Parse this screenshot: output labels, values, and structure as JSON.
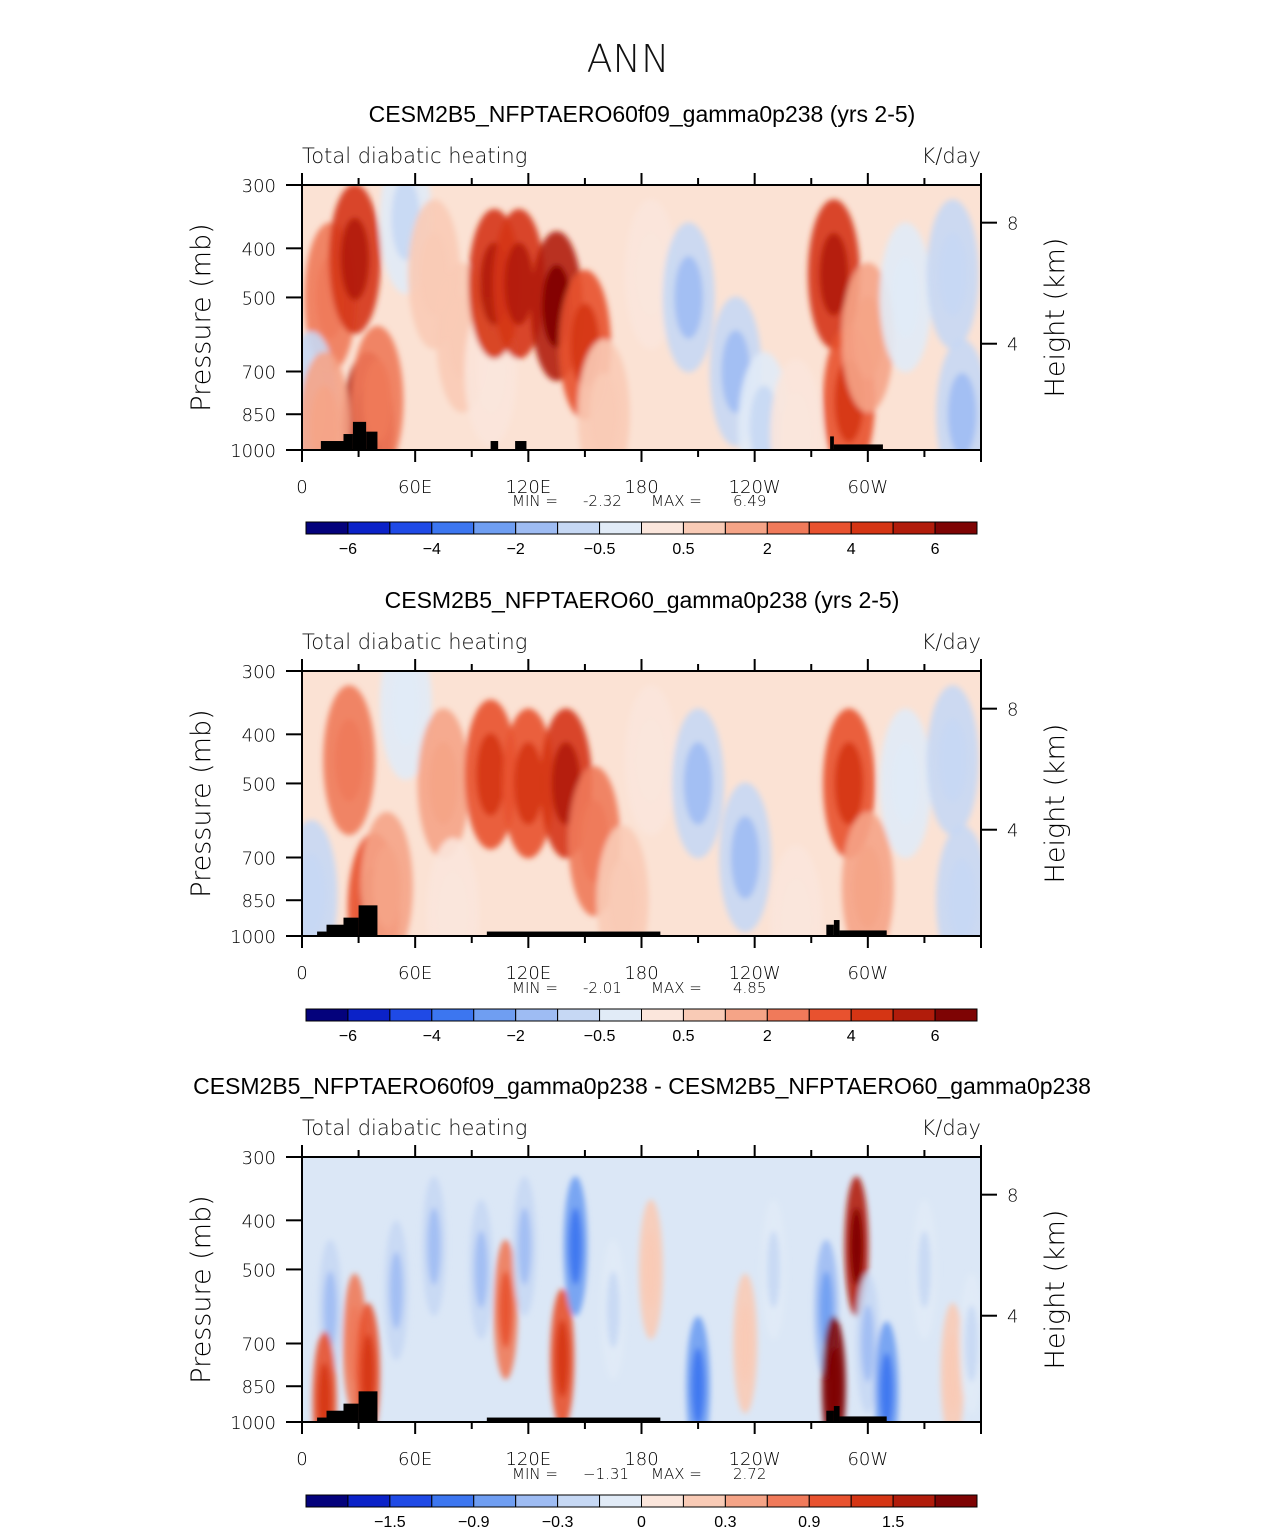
{
  "suptitle": "ANN",
  "chart_data": [
    {
      "type": "heatmap",
      "title": "CESM2B5_NFPTAERO60f09_gamma0p238 (yrs 2-5)",
      "subtitle_left": "Total diabatic heating",
      "subtitle_right": "K/day",
      "ylabel": "Pressure (mb)",
      "ylabel_right": "Height (km)",
      "yticks": [
        "300",
        "400",
        "500",
        "700",
        "850",
        "1000"
      ],
      "yticks_right": [
        "8",
        "4"
      ],
      "xticks": [
        "0",
        "60E",
        "120E",
        "180",
        "120W",
        "60W"
      ],
      "ylim": [
        1000,
        300
      ],
      "stats": {
        "min_label": "MIN =",
        "min": "-2.32",
        "max_label": "MAX =",
        "max": "6.49"
      },
      "colorbar_levels": [
        "-6",
        "-4",
        "-2",
        "-0.5",
        "0.5",
        "2",
        "4",
        "6"
      ],
      "cells": [
        {
          "lon": 15,
          "p": 500,
          "v": 3
        },
        {
          "lon": 28,
          "p": 420,
          "v": 5
        },
        {
          "lon": 35,
          "p": 900,
          "v": 6
        },
        {
          "lon": 40,
          "p": 800,
          "v": 3
        },
        {
          "lon": 55,
          "p": 350,
          "v": -1
        },
        {
          "lon": 70,
          "p": 450,
          "v": 1.5
        },
        {
          "lon": 85,
          "p": 600,
          "v": 1
        },
        {
          "lon": 100,
          "p": 700,
          "v": 0.5
        },
        {
          "lon": 102,
          "p": 470,
          "v": 5
        },
        {
          "lon": 115,
          "p": 470,
          "v": 5
        },
        {
          "lon": 135,
          "p": 520,
          "v": 6
        },
        {
          "lon": 150,
          "p": 620,
          "v": 4
        },
        {
          "lon": 160,
          "p": 850,
          "v": 1
        },
        {
          "lon": 185,
          "p": 450,
          "v": 0.5
        },
        {
          "lon": 205,
          "p": 500,
          "v": -2
        },
        {
          "lon": 230,
          "p": 700,
          "v": -2
        },
        {
          "lon": 245,
          "p": 900,
          "v": -1
        },
        {
          "lon": 262,
          "p": 930,
          "v": 0.5
        },
        {
          "lon": 282,
          "p": 450,
          "v": 5
        },
        {
          "lon": 290,
          "p": 800,
          "v": 4
        },
        {
          "lon": 300,
          "p": 600,
          "v": 2
        },
        {
          "lon": 320,
          "p": 500,
          "v": -0.5
        },
        {
          "lon": 345,
          "p": 450,
          "v": -1.5
        },
        {
          "lon": 350,
          "p": 850,
          "v": -2
        },
        {
          "lon": 5,
          "p": 820,
          "v": -1.5
        },
        {
          "lon": 12,
          "p": 900,
          "v": 2
        }
      ],
      "terrain": [
        {
          "lon0": 10,
          "lon1": 22,
          "ptop": 960
        },
        {
          "lon0": 22,
          "lon1": 27,
          "ptop": 930
        },
        {
          "lon0": 27,
          "lon1": 34,
          "ptop": 880
        },
        {
          "lon0": 34,
          "lon1": 40,
          "ptop": 920
        },
        {
          "lon0": 100,
          "lon1": 104,
          "ptop": 960
        },
        {
          "lon0": 113,
          "lon1": 119,
          "ptop": 960
        },
        {
          "lon0": 280,
          "lon1": 282,
          "ptop": 940
        },
        {
          "lon0": 282,
          "lon1": 308,
          "ptop": 975
        }
      ]
    },
    {
      "type": "heatmap",
      "title": "CESM2B5_NFPTAERO60_gamma0p238 (yrs 2-5)",
      "subtitle_left": "Total diabatic heating",
      "subtitle_right": "K/day",
      "ylabel": "Pressure (mb)",
      "ylabel_right": "Height (km)",
      "yticks": [
        "300",
        "400",
        "500",
        "700",
        "850",
        "1000"
      ],
      "yticks_right": [
        "8",
        "4"
      ],
      "xticks": [
        "0",
        "60E",
        "120E",
        "180",
        "120W",
        "60W"
      ],
      "ylim": [
        1000,
        300
      ],
      "stats": {
        "min_label": "MIN =",
        "min": "-2.01",
        "max_label": "MAX =",
        "max": "4.85"
      },
      "colorbar_levels": [
        "-6",
        "-4",
        "-2",
        "-0.5",
        "0.5",
        "2",
        "4",
        "6"
      ],
      "cells": [
        {
          "lon": 25,
          "p": 450,
          "v": 3
        },
        {
          "lon": 38,
          "p": 880,
          "v": 4
        },
        {
          "lon": 45,
          "p": 800,
          "v": 2
        },
        {
          "lon": 55,
          "p": 350,
          "v": -0.5
        },
        {
          "lon": 75,
          "p": 500,
          "v": 2
        },
        {
          "lon": 100,
          "p": 480,
          "v": 4
        },
        {
          "lon": 120,
          "p": 500,
          "v": 4
        },
        {
          "lon": 140,
          "p": 500,
          "v": 5
        },
        {
          "lon": 155,
          "p": 650,
          "v": 3
        },
        {
          "lon": 170,
          "p": 850,
          "v": 1
        },
        {
          "lon": 185,
          "p": 450,
          "v": 0.5
        },
        {
          "lon": 210,
          "p": 500,
          "v": -2
        },
        {
          "lon": 235,
          "p": 700,
          "v": -2
        },
        {
          "lon": 262,
          "p": 930,
          "v": 0.5
        },
        {
          "lon": 290,
          "p": 500,
          "v": 4
        },
        {
          "lon": 300,
          "p": 800,
          "v": 2
        },
        {
          "lon": 320,
          "p": 500,
          "v": -0.5
        },
        {
          "lon": 345,
          "p": 450,
          "v": -1.5
        },
        {
          "lon": 350,
          "p": 850,
          "v": -1.5
        },
        {
          "lon": 5,
          "p": 830,
          "v": -1.5
        },
        {
          "lon": 80,
          "p": 900,
          "v": 0.5
        }
      ],
      "terrain": [
        {
          "lon0": 8,
          "lon1": 13,
          "ptop": 980
        },
        {
          "lon0": 13,
          "lon1": 22,
          "ptop": 950
        },
        {
          "lon0": 22,
          "lon1": 30,
          "ptop": 920
        },
        {
          "lon0": 30,
          "lon1": 40,
          "ptop": 870
        },
        {
          "lon0": 98,
          "lon1": 190,
          "ptop": 980
        },
        {
          "lon0": 278,
          "lon1": 282,
          "ptop": 950
        },
        {
          "lon0": 282,
          "lon1": 285,
          "ptop": 930
        },
        {
          "lon0": 285,
          "lon1": 310,
          "ptop": 975
        }
      ]
    },
    {
      "type": "heatmap",
      "title": "CESM2B5_NFPTAERO60f09_gamma0p238 - CESM2B5_NFPTAERO60_gamma0p238",
      "subtitle_left": "Total diabatic heating",
      "subtitle_right": "K/day",
      "ylabel": "Pressure (mb)",
      "ylabel_right": "Height (km)",
      "yticks": [
        "300",
        "400",
        "500",
        "700",
        "850",
        "1000"
      ],
      "yticks_right": [
        "8",
        "4"
      ],
      "xticks": [
        "0",
        "60E",
        "120E",
        "180",
        "120W",
        "60W"
      ],
      "ylim": [
        1000,
        300
      ],
      "stats": {
        "min_label": "MIN =",
        "min": "−1.31",
        "max_label": "MAX =",
        "max": "2.72"
      },
      "colorbar_levels": [
        "-1.5",
        "-0.9",
        "-0.3",
        "0",
        "0.3",
        "0.9",
        "1.5"
      ],
      "cells": [
        {
          "lon": 15,
          "p": 600,
          "v": -0.6
        },
        {
          "lon": 28,
          "p": 700,
          "v": 0.9
        },
        {
          "lon": 35,
          "p": 800,
          "v": 1.2
        },
        {
          "lon": 12,
          "p": 910,
          "v": 1.2
        },
        {
          "lon": 50,
          "p": 550,
          "v": -0.6
        },
        {
          "lon": 70,
          "p": 450,
          "v": -0.6
        },
        {
          "lon": 95,
          "p": 500,
          "v": -0.6
        },
        {
          "lon": 108,
          "p": 600,
          "v": 1.0
        },
        {
          "lon": 118,
          "p": 450,
          "v": -0.6
        },
        {
          "lon": 138,
          "p": 750,
          "v": 1.2
        },
        {
          "lon": 145,
          "p": 450,
          "v": -1.2
        },
        {
          "lon": 165,
          "p": 600,
          "v": -0.3
        },
        {
          "lon": 185,
          "p": 500,
          "v": 0.3
        },
        {
          "lon": 210,
          "p": 850,
          "v": -1.2
        },
        {
          "lon": 235,
          "p": 700,
          "v": 0.3
        },
        {
          "lon": 250,
          "p": 500,
          "v": -0.3
        },
        {
          "lon": 278,
          "p": 600,
          "v": -0.9
        },
        {
          "lon": 282,
          "p": 850,
          "v": 2.2
        },
        {
          "lon": 294,
          "p": 450,
          "v": 2.0
        },
        {
          "lon": 300,
          "p": 700,
          "v": -0.6
        },
        {
          "lon": 310,
          "p": 870,
          "v": -1.0
        },
        {
          "lon": 330,
          "p": 500,
          "v": -0.3
        },
        {
          "lon": 345,
          "p": 800,
          "v": 0.3
        },
        {
          "lon": 355,
          "p": 700,
          "v": -0.3
        }
      ],
      "terrain": [
        {
          "lon0": 8,
          "lon1": 13,
          "ptop": 980
        },
        {
          "lon0": 13,
          "lon1": 22,
          "ptop": 950
        },
        {
          "lon0": 22,
          "lon1": 30,
          "ptop": 920
        },
        {
          "lon0": 30,
          "lon1": 40,
          "ptop": 870
        },
        {
          "lon0": 98,
          "lon1": 190,
          "ptop": 980
        },
        {
          "lon0": 278,
          "lon1": 282,
          "ptop": 950
        },
        {
          "lon0": 282,
          "lon1": 285,
          "ptop": 930
        },
        {
          "lon0": 285,
          "lon1": 310,
          "ptop": 975
        }
      ]
    }
  ],
  "colors": {
    "scale": [
      "#04027c",
      "#0b22c8",
      "#1f4ae6",
      "#3c76f0",
      "#6f9ef2",
      "#9ebcf3",
      "#c6d8f4",
      "#e1ebf7",
      "#fbe6dc",
      "#f9cbb6",
      "#f5a487",
      "#f07a5a",
      "#e8522f",
      "#d53514",
      "#b11c0b",
      "#7e0404"
    ]
  }
}
